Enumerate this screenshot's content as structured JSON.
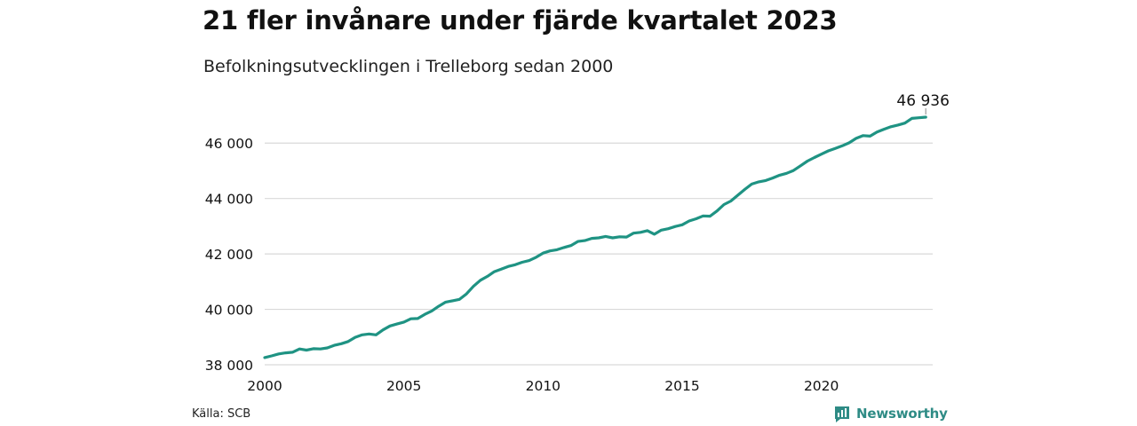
{
  "title": "21 fler invånare under fjärde kvartalet 2023",
  "subtitle": "Befolkningsutvecklingen i Trelleborg sedan 2000",
  "source": "Källa: SCB",
  "brand": {
    "name": "Newsworthy",
    "icon": "newsworthy-logo-icon",
    "color": "#2e8b85"
  },
  "colors": {
    "line": "#1f9383",
    "grid": "#d9d9d9",
    "text": "#111111"
  },
  "chart_data": {
    "type": "line",
    "title": "21 fler invånare under fjärde kvartalet 2023",
    "subtitle": "Befolkningsutvecklingen i Trelleborg sedan 2000",
    "xlabel": "",
    "ylabel": "",
    "xlim": [
      2000,
      2024
    ],
    "ylim": [
      38000,
      47000
    ],
    "grid": true,
    "x_ticks": [
      2000,
      2005,
      2010,
      2015,
      2020
    ],
    "x_tick_labels": [
      "2000",
      "2005",
      "2010",
      "2015",
      "2020"
    ],
    "y_ticks": [
      38000,
      40000,
      42000,
      44000,
      46000
    ],
    "y_tick_labels": [
      "38 000",
      "40 000",
      "42 000",
      "44 000",
      "46 000"
    ],
    "annotation": {
      "x": 2023.75,
      "y": 46936,
      "text": "46 936"
    },
    "series": [
      {
        "x": [
          2000.0,
          2000.25,
          2000.5,
          2000.75,
          2001.0,
          2001.25,
          2001.5,
          2001.75,
          2002.0,
          2002.25,
          2002.5,
          2002.75,
          2003.0,
          2003.25,
          2003.5,
          2003.75,
          2004.0,
          2004.25,
          2004.5,
          2004.75,
          2005.0,
          2005.25,
          2005.5,
          2005.75,
          2006.0,
          2006.25,
          2006.5,
          2006.75,
          2007.0,
          2007.25,
          2007.5,
          2007.75,
          2008.0,
          2008.25,
          2008.5,
          2008.75,
          2009.0,
          2009.25,
          2009.5,
          2009.75,
          2010.0,
          2010.25,
          2010.5,
          2010.75,
          2011.0,
          2011.25,
          2011.5,
          2011.75,
          2012.0,
          2012.25,
          2012.5,
          2012.75,
          2013.0,
          2013.25,
          2013.5,
          2013.75,
          2014.0,
          2014.25,
          2014.5,
          2014.75,
          2015.0,
          2015.25,
          2015.5,
          2015.75,
          2016.0,
          2016.25,
          2016.5,
          2016.75,
          2017.0,
          2017.25,
          2017.5,
          2017.75,
          2018.0,
          2018.25,
          2018.5,
          2018.75,
          2019.0,
          2019.25,
          2019.5,
          2019.75,
          2020.0,
          2020.25,
          2020.5,
          2020.75,
          2021.0,
          2021.25,
          2021.5,
          2021.75,
          2022.0,
          2022.25,
          2022.5,
          2022.75,
          2023.0,
          2023.25,
          2023.5,
          2023.75
        ],
        "values": [
          38260,
          38320,
          38390,
          38430,
          38450,
          38570,
          38530,
          38580,
          38570,
          38610,
          38700,
          38760,
          38840,
          38990,
          39080,
          39110,
          39080,
          39260,
          39400,
          39470,
          39540,
          39660,
          39670,
          39820,
          39940,
          40110,
          40260,
          40310,
          40360,
          40560,
          40830,
          41050,
          41190,
          41360,
          41450,
          41550,
          41610,
          41700,
          41760,
          41880,
          42030,
          42110,
          42150,
          42230,
          42300,
          42450,
          42480,
          42560,
          42580,
          42630,
          42580,
          42620,
          42610,
          42750,
          42780,
          42840,
          42710,
          42860,
          42910,
          42990,
          43050,
          43190,
          43270,
          43370,
          43360,
          43550,
          43780,
          43910,
          44120,
          44330,
          44520,
          44600,
          44650,
          44740,
          44840,
          44910,
          45010,
          45180,
          45350,
          45480,
          45600,
          45720,
          45810,
          45900,
          46010,
          46170,
          46270,
          46250,
          46400,
          46500,
          46590,
          46650,
          46720,
          46890,
          46915,
          46936
        ]
      }
    ]
  }
}
